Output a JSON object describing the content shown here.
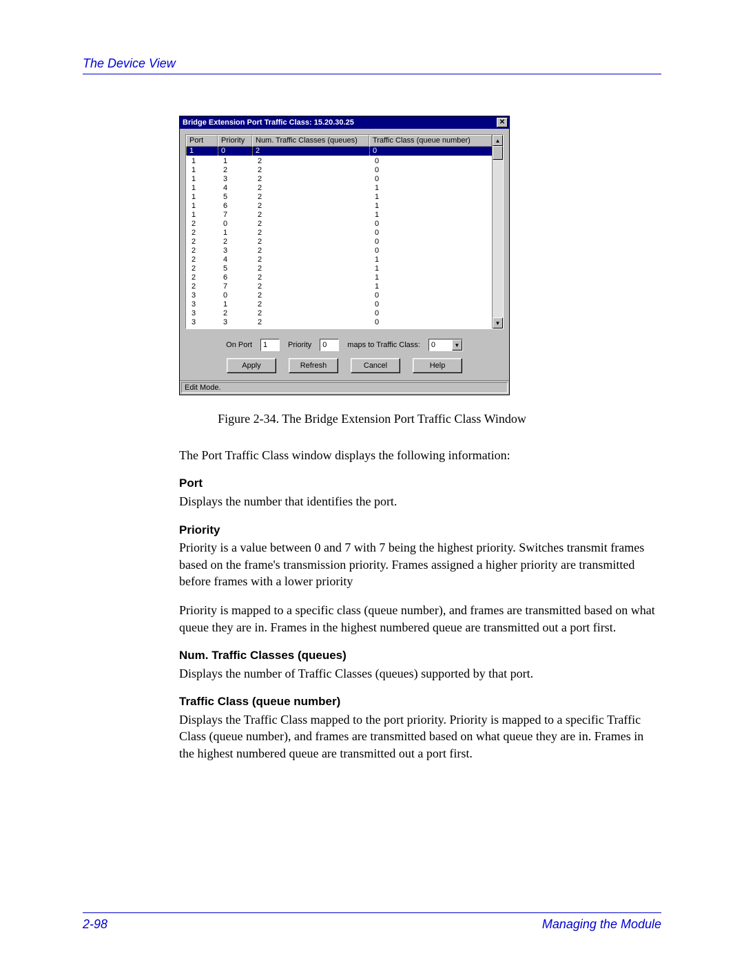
{
  "header": {
    "title": "The Device View"
  },
  "dialog": {
    "title": "Bridge Extension Port Traffic Class: 15.20.30.25",
    "columns": {
      "port": "Port",
      "priority": "Priority",
      "num": "Num. Traffic Classes (queues)",
      "tc": "Traffic Class (queue number)"
    },
    "selected": {
      "port": "1",
      "priority": "0",
      "num": "2",
      "tc": "0"
    },
    "rows": [
      {
        "port": "1",
        "priority": "1",
        "num": "2",
        "tc": "0"
      },
      {
        "port": "1",
        "priority": "2",
        "num": "2",
        "tc": "0"
      },
      {
        "port": "1",
        "priority": "3",
        "num": "2",
        "tc": "0"
      },
      {
        "port": "1",
        "priority": "4",
        "num": "2",
        "tc": "1"
      },
      {
        "port": "1",
        "priority": "5",
        "num": "2",
        "tc": "1"
      },
      {
        "port": "1",
        "priority": "6",
        "num": "2",
        "tc": "1"
      },
      {
        "port": "1",
        "priority": "7",
        "num": "2",
        "tc": "1"
      },
      {
        "port": "2",
        "priority": "0",
        "num": "2",
        "tc": "0"
      },
      {
        "port": "2",
        "priority": "1",
        "num": "2",
        "tc": "0"
      },
      {
        "port": "2",
        "priority": "2",
        "num": "2",
        "tc": "0"
      },
      {
        "port": "2",
        "priority": "3",
        "num": "2",
        "tc": "0"
      },
      {
        "port": "2",
        "priority": "4",
        "num": "2",
        "tc": "1"
      },
      {
        "port": "2",
        "priority": "5",
        "num": "2",
        "tc": "1"
      },
      {
        "port": "2",
        "priority": "6",
        "num": "2",
        "tc": "1"
      },
      {
        "port": "2",
        "priority": "7",
        "num": "2",
        "tc": "1"
      },
      {
        "port": "3",
        "priority": "0",
        "num": "2",
        "tc": "0"
      },
      {
        "port": "3",
        "priority": "1",
        "num": "2",
        "tc": "0"
      },
      {
        "port": "3",
        "priority": "2",
        "num": "2",
        "tc": "0"
      },
      {
        "port": "3",
        "priority": "3",
        "num": "2",
        "tc": "0"
      }
    ],
    "form": {
      "on_port_label": "On Port",
      "on_port_value": "1",
      "priority_label": "Priority",
      "priority_value": "0",
      "maps_label": "maps to Traffic Class:",
      "maps_value": "0"
    },
    "buttons": {
      "apply": "Apply",
      "refresh": "Refresh",
      "cancel": "Cancel",
      "help": "Help"
    },
    "status": "Edit Mode."
  },
  "figure_caption": "Figure 2-34.  The Bridge Extension Port Traffic Class Window",
  "intro": "The Port Traffic Class window displays the following information:",
  "sections": {
    "port_h": "Port",
    "port_p": "Displays the number that identifies the port.",
    "pri_h": "Priority",
    "pri_p1": "Priority is a value between 0 and 7 with 7 being the highest priority. Switches transmit frames based on the frame's transmission priority. Frames assigned a higher priority are transmitted before frames with a lower priority",
    "pri_p2": "Priority is mapped to a specific class (queue number), and frames are transmitted based on what queue they are in. Frames in the highest numbered queue are transmitted out a port first.",
    "num_h": "Num. Traffic Classes (queues)",
    "num_p": "Displays the number of Traffic Classes (queues) supported by that port.",
    "tc_h": "Traffic Class (queue number)",
    "tc_p": "Displays the Traffic Class mapped to the port priority. Priority is mapped to a specific Traffic Class (queue number), and frames are transmitted based on what queue they are in. Frames in the highest numbered queue are transmitted out a port first."
  },
  "footer": {
    "page": "2-98",
    "section": "Managing the Module"
  }
}
